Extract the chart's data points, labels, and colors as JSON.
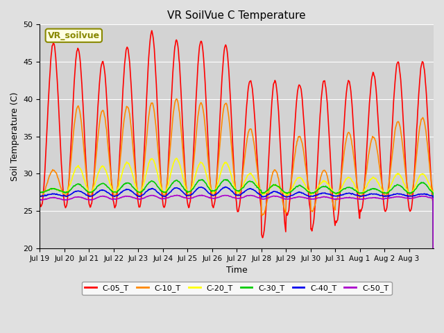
{
  "title": "VR SoilVue C Temperature",
  "xlabel": "Time",
  "ylabel": "Soil Temperature (C)",
  "ylim": [
    20,
    50
  ],
  "fig_bg": "#e0e0e0",
  "plot_bg": "#d3d3d3",
  "grid_color": "#ffffff",
  "series_colors": {
    "C-05_T": "#ff0000",
    "C-10_T": "#ff8800",
    "C-20_T": "#ffff00",
    "C-30_T": "#00cc00",
    "C-40_T": "#0000ee",
    "C-50_T": "#aa00cc"
  },
  "annotation_text": "VR_soilvue",
  "annotation_fg": "#888800",
  "annotation_bg": "#ffffe0",
  "xtick_labels": [
    "Jul 19",
    "Jul 20",
    "Jul 21",
    "Jul 22",
    "Jul 23",
    "Jul 24",
    "Jul 25",
    "Jul 26",
    "Jul 27",
    "Jul 28",
    "Jul 29",
    "Jul 30",
    "Jul 31",
    "Aug 1",
    "Aug 2",
    "Aug 3"
  ]
}
